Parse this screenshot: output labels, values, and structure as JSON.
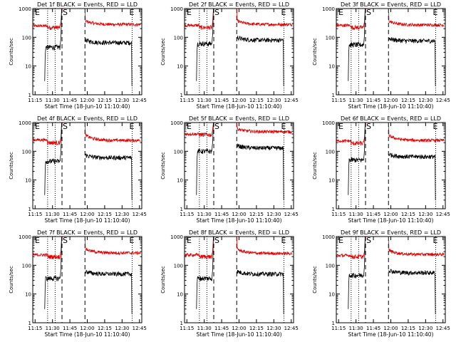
{
  "colors": {
    "events": "#000000",
    "lld": "#e00000",
    "axis": "#000000"
  },
  "shared": {
    "xlabel": "Start Time (18-Jun-10 11:10:40)",
    "ylabel": "Counts/sec",
    "x_ticks": [
      "11:15",
      "11:30",
      "11:45",
      "12:00",
      "12:15",
      "12:30",
      "12:45"
    ],
    "y_ticks": [
      "1",
      "10",
      "100",
      "1000"
    ],
    "markers": {
      "start": "E",
      "saa": "S",
      "end": "E"
    }
  },
  "chart_data": [
    {
      "type": "line",
      "title": "Det 1f BLACK = Events, RED = LLD",
      "xlim_minutes": [
        3,
        97
      ],
      "ylim": [
        1,
        1000
      ],
      "y_scale": "log",
      "dotted_lines_min": [
        15.8,
        22.3,
        88.7
      ],
      "dashed_lines_min": [
        28.2,
        48.0
      ],
      "series": [
        {
          "level_before": 45,
          "level_after": 65
        },
        {
          "level_before": 220,
          "level_after": 280,
          "early_before": 250,
          "decay_start": 380
        }
      ]
    },
    {
      "type": "line",
      "title": "Det 2f BLACK = Events, RED = LLD",
      "xlim_minutes": [
        3,
        97
      ],
      "ylim": [
        1,
        1000
      ],
      "y_scale": "log",
      "dotted_lines_min": [
        15.8,
        22.3,
        88.7
      ],
      "dashed_lines_min": [
        28.2,
        48.0
      ],
      "series": [
        {
          "level_before": 60,
          "level_after": 80
        },
        {
          "level_before": 220,
          "level_after": 280,
          "early_before": 260,
          "decay_start": 380
        }
      ]
    },
    {
      "type": "line",
      "title": "Det 3f BLACK = Events, RED = LLD",
      "xlim_minutes": [
        3,
        97
      ],
      "ylim": [
        1,
        1000
      ],
      "y_scale": "log",
      "dotted_lines_min": [
        15.8,
        22.3,
        88.7
      ],
      "dashed_lines_min": [
        28.2,
        48.0
      ],
      "series": [
        {
          "level_before": 55,
          "level_after": 75
        },
        {
          "level_before": 220,
          "level_after": 270,
          "early_before": 260,
          "decay_start": 370
        }
      ]
    },
    {
      "type": "line",
      "title": "Det 4f BLACK = Events, RED = LLD",
      "xlim_minutes": [
        3,
        97
      ],
      "ylim": [
        1,
        1000
      ],
      "y_scale": "log",
      "dotted_lines_min": [
        15.8,
        22.3,
        88.7
      ],
      "dashed_lines_min": [
        28.2,
        48.0
      ],
      "series": [
        {
          "level_before": 45,
          "level_after": 60
        },
        {
          "level_before": 200,
          "level_after": 240,
          "early_before": 250,
          "decay_start": 370
        }
      ]
    },
    {
      "type": "line",
      "title": "Det 5f BLACK = Events, RED = LLD",
      "xlim_minutes": [
        3,
        97
      ],
      "ylim": [
        1,
        1000
      ],
      "y_scale": "log",
      "dotted_lines_min": [
        15.8,
        22.3,
        88.7
      ],
      "dashed_lines_min": [
        28.2,
        48.0
      ],
      "series": [
        {
          "level_before": 100,
          "level_after": 130
        },
        {
          "level_before": 380,
          "level_after": 480,
          "early_before": 400,
          "decay_start": 620
        }
      ]
    },
    {
      "type": "line",
      "title": "Det 6f BLACK = Events, RED = LLD",
      "xlim_minutes": [
        3,
        97
      ],
      "ylim": [
        1,
        1000
      ],
      "y_scale": "log",
      "dotted_lines_min": [
        15.8,
        22.3,
        88.7
      ],
      "dashed_lines_min": [
        28.2,
        48.0
      ],
      "series": [
        {
          "level_before": 50,
          "level_after": 65
        },
        {
          "level_before": 190,
          "level_after": 240,
          "early_before": 230,
          "decay_start": 360
        }
      ]
    },
    {
      "type": "line",
      "title": "Det 7f BLACK = Events, RED = LLD",
      "xlim_minutes": [
        3,
        97
      ],
      "ylim": [
        1,
        1000
      ],
      "y_scale": "log",
      "dotted_lines_min": [
        15.8,
        22.3,
        88.7
      ],
      "dashed_lines_min": [
        28.2,
        48.0
      ],
      "series": [
        {
          "level_before": 35,
          "level_after": 50
        },
        {
          "level_before": 200,
          "level_after": 270,
          "early_before": 230,
          "decay_start": 380
        }
      ]
    },
    {
      "type": "line",
      "title": "Det 8f BLACK = Events, RED = LLD",
      "xlim_minutes": [
        3,
        97
      ],
      "ylim": [
        1,
        1000
      ],
      "y_scale": "log",
      "dotted_lines_min": [
        15.8,
        22.3,
        88.7
      ],
      "dashed_lines_min": [
        28.2,
        48.0
      ],
      "series": [
        {
          "level_before": 35,
          "level_after": 50
        },
        {
          "level_before": 200,
          "level_after": 260,
          "early_before": 230,
          "decay_start": 370
        }
      ]
    },
    {
      "type": "line",
      "title": "Det 9f BLACK = Events, RED = LLD",
      "xlim_minutes": [
        3,
        97
      ],
      "ylim": [
        1,
        1000
      ],
      "y_scale": "log",
      "dotted_lines_min": [
        15.8,
        22.3,
        88.7
      ],
      "dashed_lines_min": [
        28.2,
        48.0
      ],
      "series": [
        {
          "level_before": 45,
          "level_after": 55
        },
        {
          "level_before": 200,
          "level_after": 240,
          "early_before": 220,
          "decay_start": 340
        }
      ]
    }
  ]
}
